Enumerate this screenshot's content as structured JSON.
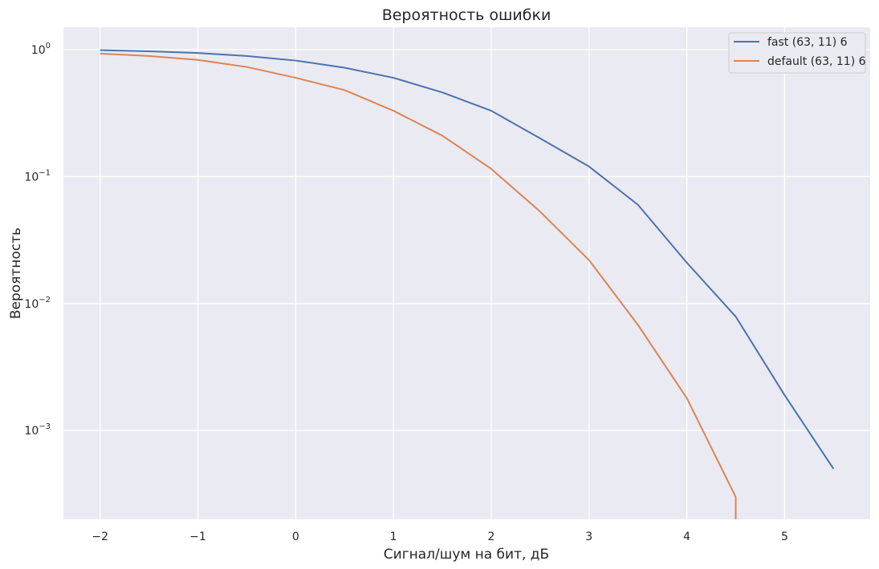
{
  "chart_data": {
    "type": "line",
    "title": "Вероятность ошибки",
    "xlabel": "Сигнал/шум на бит, дБ",
    "ylabel": "Вероятность",
    "xlim": [
      -2.375,
      5.875
    ],
    "ylim": [
      0.0002,
      1.5
    ],
    "yscale": "log",
    "grid": true,
    "legend_position": "top-right",
    "x_ticks": [
      {
        "value": -2,
        "label": "−2"
      },
      {
        "value": -1,
        "label": "−1"
      },
      {
        "value": 0,
        "label": "0"
      },
      {
        "value": 1,
        "label": "1"
      },
      {
        "value": 2,
        "label": "2"
      },
      {
        "value": 3,
        "label": "3"
      },
      {
        "value": 4,
        "label": "4"
      },
      {
        "value": 5,
        "label": "5"
      }
    ],
    "y_ticks": [
      {
        "value": 1,
        "base": "10",
        "exp": "0"
      },
      {
        "value": 0.1,
        "base": "10",
        "exp": "−1"
      },
      {
        "value": 0.01,
        "base": "10",
        "exp": "−2"
      },
      {
        "value": 0.001,
        "base": "10",
        "exp": "−3"
      }
    ],
    "series": [
      {
        "name": "fast (63, 11) 6",
        "color": "#4c72b0",
        "x": [
          -2,
          -1.5,
          -1,
          -0.5,
          0,
          0.5,
          1,
          1.5,
          2,
          2.5,
          3,
          3.5,
          4,
          4.5,
          5,
          5.5
        ],
        "y": [
          0.99,
          0.97,
          0.94,
          0.89,
          0.82,
          0.72,
          0.6,
          0.46,
          0.33,
          0.2,
          0.12,
          0.06,
          0.021,
          0.0079,
          0.0019,
          0.0005
        ]
      },
      {
        "name": "default (63, 11) 6",
        "color": "#dd8452",
        "x": [
          -2,
          -1.5,
          -1,
          -0.5,
          0,
          0.5,
          1,
          1.5,
          2,
          2.5,
          3,
          3.5,
          4,
          4.5,
          4.5
        ],
        "y": [
          0.93,
          0.89,
          0.83,
          0.73,
          0.6,
          0.48,
          0.33,
          0.21,
          0.115,
          0.053,
          0.022,
          0.0068,
          0.0018,
          0.0003,
          0.0002
        ]
      }
    ]
  }
}
